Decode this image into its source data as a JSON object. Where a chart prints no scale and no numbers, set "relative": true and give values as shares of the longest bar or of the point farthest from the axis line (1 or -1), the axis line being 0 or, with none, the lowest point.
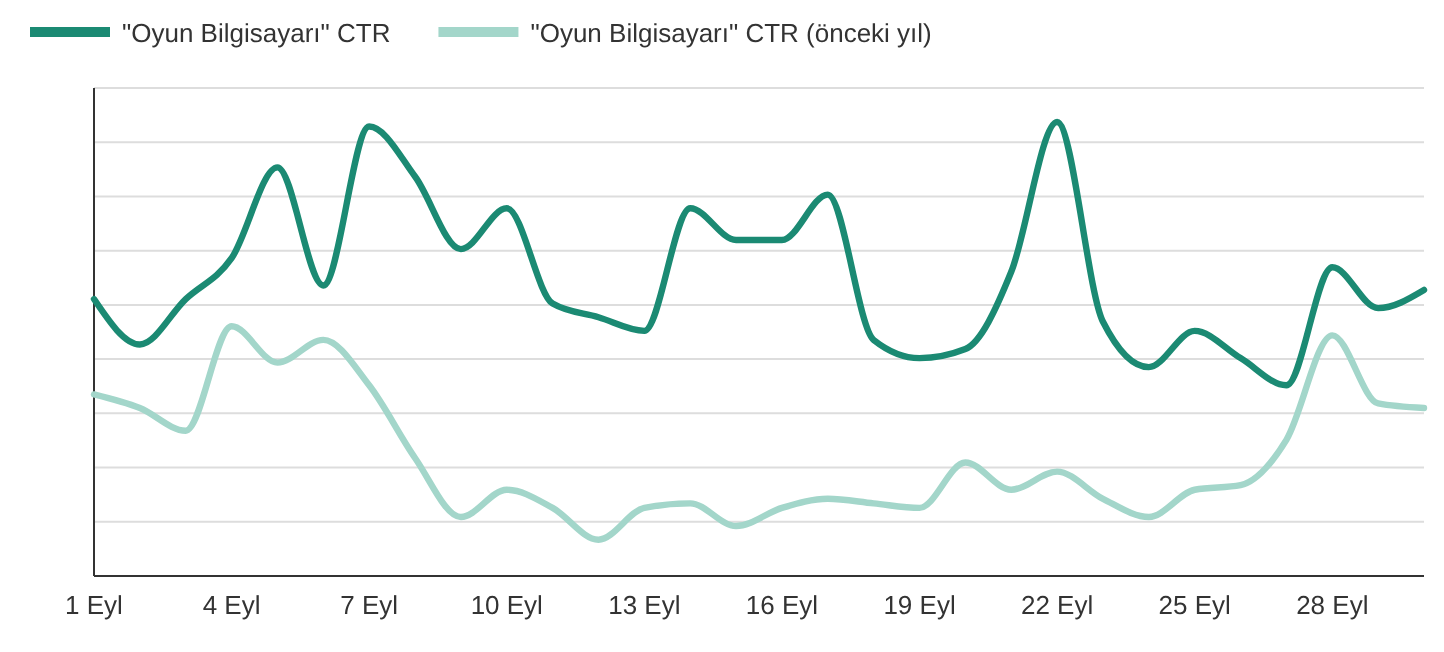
{
  "chart_data": {
    "type": "line",
    "relative": true,
    "grid": "y",
    "legend": "top left",
    "marker": "none",
    "line_style": "solid",
    "categories": [
      "1 Eyl",
      null,
      null,
      "4 Eyl",
      null,
      null,
      "7 Eyl",
      null,
      null,
      "10 Eyl",
      null,
      null,
      "13 Eyl",
      null,
      null,
      "16 Eyl",
      null,
      null,
      "19 Eyl",
      null,
      null,
      "22 Eyl",
      null,
      null,
      "25 Eyl",
      null,
      null,
      "28 Eyl",
      null,
      null
    ],
    "series": [
      {
        "name": "\"Oyun Bilgisayarı\" CTR",
        "color": "#1b8a73",
        "values": [
          0.61,
          0.51,
          0.61,
          0.7,
          0.9,
          0.64,
          0.99,
          0.88,
          0.72,
          0.81,
          0.6,
          0.57,
          0.54,
          0.81,
          0.74,
          0.74,
          0.84,
          0.52,
          0.48,
          0.5,
          0.67,
          1,
          0.56,
          0.46,
          0.54,
          0.48,
          0.42,
          0.68,
          0.59,
          0.63
        ]
      },
      {
        "name": "\"Oyun Bilgisayarı\" CTR (önceki yıl)",
        "color": "#a3d6ca",
        "values": [
          0.4,
          0.37,
          0.32,
          0.55,
          0.47,
          0.52,
          0.42,
          0.26,
          0.13,
          0.19,
          0.15,
          0.08,
          0.15,
          0.16,
          0.11,
          0.15,
          0.17,
          0.16,
          0.15,
          0.25,
          0.19,
          0.23,
          0.17,
          0.13,
          0.19,
          0.2,
          0.3,
          0.53,
          0.38,
          0.37
        ]
      }
    ]
  }
}
